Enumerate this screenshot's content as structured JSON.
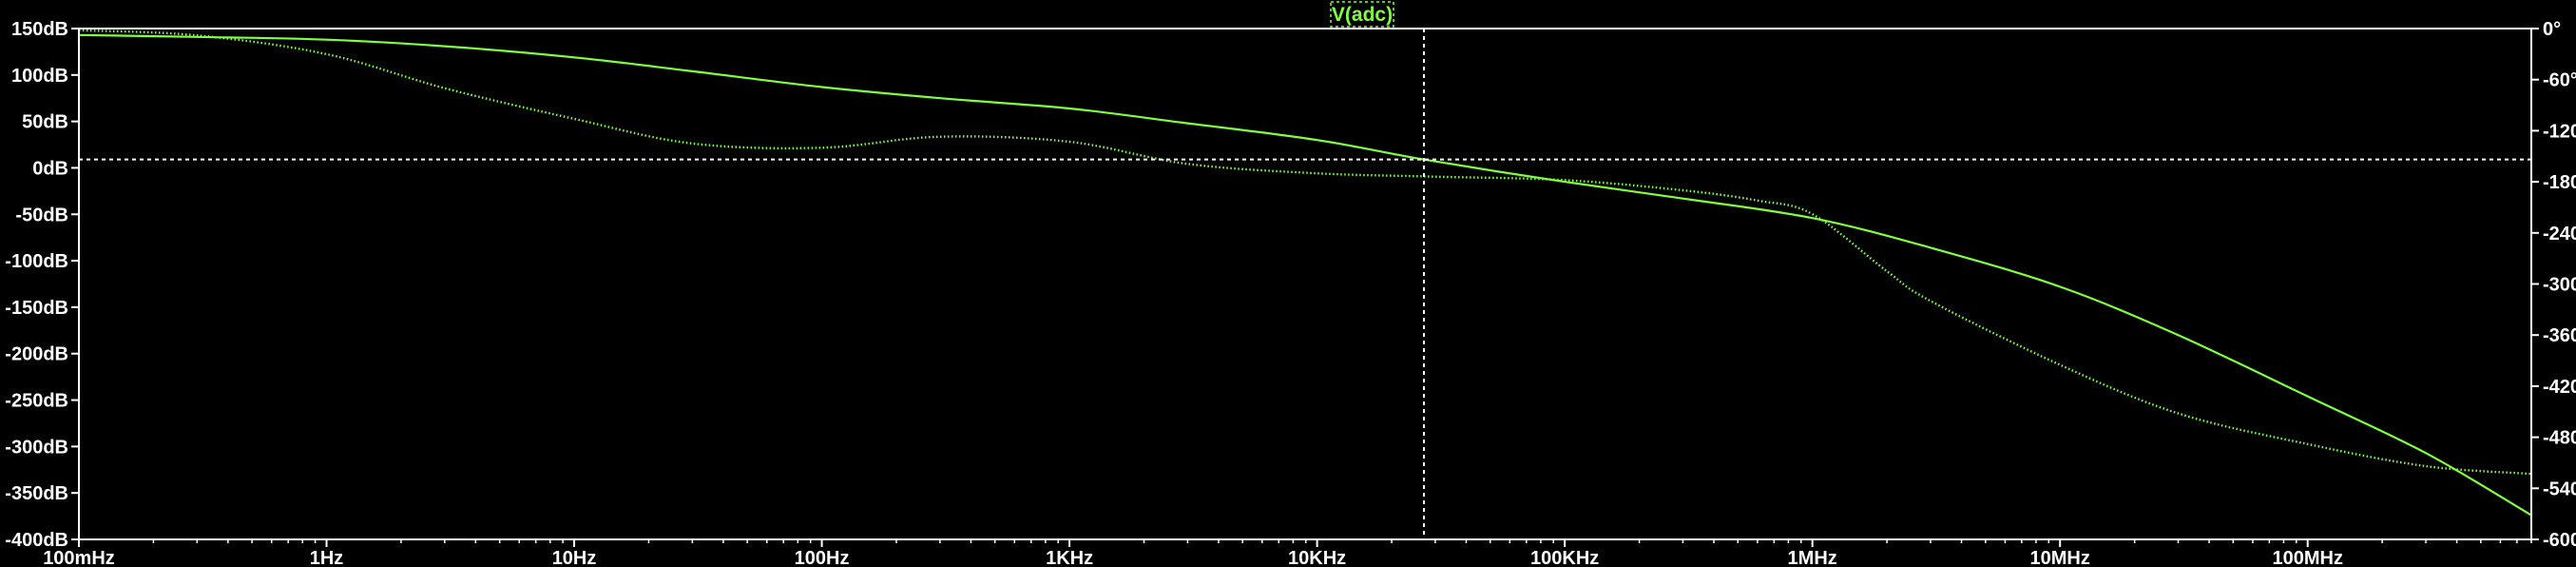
{
  "chart_data": {
    "type": "line",
    "title": "V(adc)",
    "x_scale": "log",
    "xlim": [
      0.1,
      800000000
    ],
    "x_tick_values": [
      0.1,
      1,
      10,
      100,
      1000,
      10000,
      100000,
      1000000,
      10000000,
      100000000
    ],
    "x_tick_labels": [
      "100mHz",
      "1Hz",
      "10Hz",
      "100Hz",
      "1KHz",
      "10KHz",
      "100KHz",
      "1MHz",
      "10MHz",
      "100MHz"
    ],
    "y_left": {
      "lim": [
        -400,
        150
      ],
      "ticks": [
        150,
        100,
        50,
        0,
        -50,
        -100,
        -150,
        -200,
        -250,
        -300,
        -350,
        -400
      ],
      "tick_labels": [
        "150dB",
        "100dB",
        "50dB",
        "0dB",
        "-50dB",
        "-100dB",
        "-150dB",
        "-200dB",
        "-250dB",
        "-300dB",
        "-350dB",
        "-400dB"
      ]
    },
    "y_right": {
      "lim": [
        -600,
        0
      ],
      "ticks": [
        0,
        -60,
        -120,
        -180,
        -240,
        -300,
        -360,
        -420,
        -480,
        -540,
        -600
      ],
      "tick_labels": [
        "0°",
        "-60°",
        "-120°",
        "-180°",
        "-240°",
        "-300°",
        "-360°",
        "-420°",
        "-480°",
        "-540°",
        "-600°"
      ]
    },
    "cursor": {
      "x": 27000,
      "y_db": 9
    },
    "colors": {
      "trace": "#7fff3f",
      "axes": "#ffffff",
      "background": "#000000",
      "cursor": "#ffffff"
    },
    "series": [
      {
        "quantity": "magnitude",
        "axis": "left",
        "style": "solid",
        "x": [
          0.1,
          0.3,
          1,
          3,
          10,
          30,
          100,
          300,
          1000,
          3000,
          10000,
          27000,
          100000,
          300000,
          1000000,
          3000000,
          10000000,
          30000000,
          100000000,
          300000000,
          800000000
        ],
        "y": [
          143,
          141,
          138,
          131,
          119,
          104,
          87,
          75,
          64,
          48,
          30,
          9,
          -15,
          -33,
          -54,
          -86,
          -128,
          -180,
          -246,
          -307,
          -374
        ]
      },
      {
        "quantity": "phase",
        "axis": "right",
        "style": "dotted",
        "x": [
          0.1,
          0.3,
          1,
          3,
          10,
          30,
          100,
          300,
          1000,
          3000,
          10000,
          30000,
          100000,
          300000,
          600000,
          1000000,
          2000000,
          3000000,
          10000000,
          30000000,
          100000000,
          300000000,
          800000000
        ],
        "y": [
          -2,
          -8,
          -30,
          -70,
          -106,
          -135,
          -140,
          -127,
          -133,
          -159,
          -170,
          -174,
          -178,
          -190,
          -202,
          -218,
          -285,
          -320,
          -395,
          -452,
          -488,
          -514,
          -523
        ]
      }
    ]
  }
}
